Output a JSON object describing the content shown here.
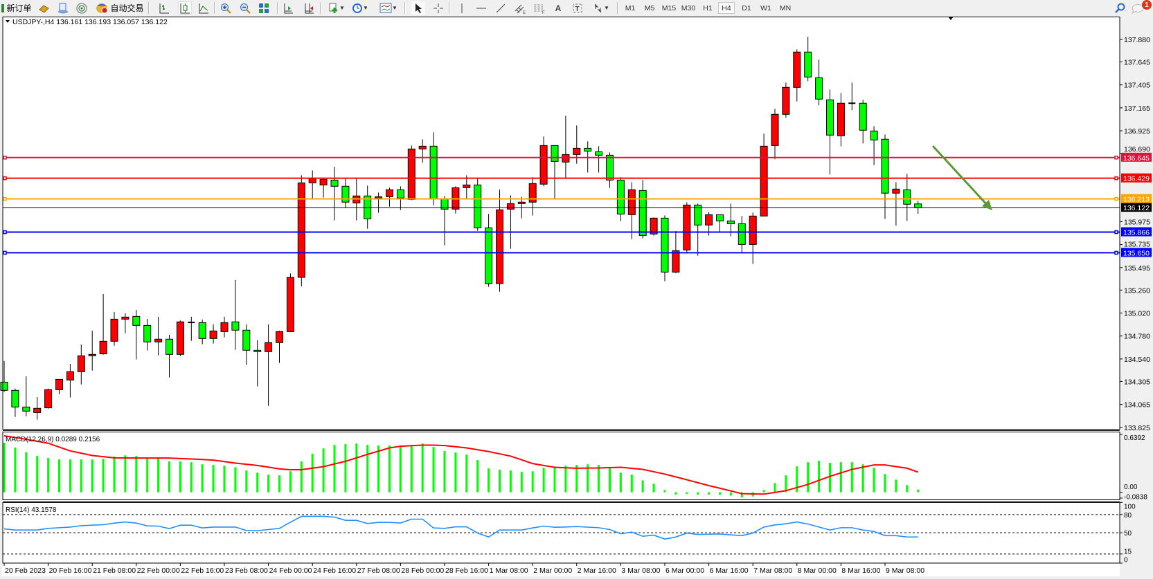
{
  "toolbar": {
    "new_order_label": "新订单",
    "auto_trade_label": "自动交易",
    "timeframes": [
      "M1",
      "M5",
      "M15",
      "M30",
      "H1",
      "H4",
      "D1",
      "W1",
      "MN"
    ],
    "active_timeframe": "H4",
    "notification_count": "1",
    "icons": [
      "new-order-icon",
      "gold-icon",
      "market-watch-icon",
      "signals-icon",
      "auto-trade-icon",
      "bar-chart-icon",
      "candlestick-icon",
      "line-chart-icon",
      "zoom-in-icon",
      "zoom-out-icon",
      "tile-windows-icon",
      "chart-shift-icon",
      "auto-scroll-icon",
      "new-chart-icon",
      "clock-icon",
      "template-icon",
      "cursor-icon",
      "crosshair-icon",
      "vertical-line-icon",
      "horizontal-line-icon",
      "trendline-icon",
      "equidistant-channel-icon",
      "fibonacci-icon",
      "text-icon",
      "text-label-icon",
      "arrows-icon",
      "search-icon",
      "chat-icon"
    ]
  },
  "chart": {
    "header": "USDJPY-,H4  136.161 136.193 136.057 136.122",
    "up_color": "#ff0000",
    "down_color": "#00ff00",
    "current_price": "136.122",
    "price_ticks": [
      "137.880",
      "137.645",
      "137.405",
      "137.165",
      "136.925",
      "136.690",
      "135.975",
      "135.735",
      "135.495",
      "135.260",
      "135.020",
      "134.780",
      "134.540",
      "134.305",
      "134.065",
      "133.825"
    ],
    "levels": [
      {
        "price": "136.645",
        "color": "#dc143c"
      },
      {
        "price": "136.429",
        "color": "#ff0000"
      },
      {
        "price": "136.213",
        "color": "#ffa500"
      },
      {
        "price": "135.866",
        "color": "#0000ff"
      },
      {
        "price": "135.650",
        "color": "#0000ff"
      }
    ],
    "arrow_color": "#5b9a32",
    "time_labels": [
      {
        "i": 0,
        "label": "20 Feb 2023"
      },
      {
        "i": 4,
        "label": "20 Feb 16:00"
      },
      {
        "i": 8,
        "label": "21 Feb 08:00"
      },
      {
        "i": 12,
        "label": "22 Feb 00:00"
      },
      {
        "i": 16,
        "label": "22 Feb 16:00"
      },
      {
        "i": 20,
        "label": "23 Feb 08:00"
      },
      {
        "i": 24,
        "label": "24 Feb 00:00"
      },
      {
        "i": 28,
        "label": "24 Feb 16:00"
      },
      {
        "i": 32,
        "label": "27 Feb 08:00"
      },
      {
        "i": 36,
        "label": "28 Feb 00:00"
      },
      {
        "i": 40,
        "label": "28 Feb 16:00"
      },
      {
        "i": 44,
        "label": "1 Mar 08:00"
      },
      {
        "i": 48,
        "label": "2 Mar 00:00"
      },
      {
        "i": 52,
        "label": "2 Mar 16:00"
      },
      {
        "i": 56,
        "label": "3 Mar 08:00"
      },
      {
        "i": 60,
        "label": "6 Mar 00:00"
      },
      {
        "i": 64,
        "label": "6 Mar 16:00"
      },
      {
        "i": 68,
        "label": "7 Mar 08:00"
      },
      {
        "i": 72,
        "label": "8 Mar 00:00"
      },
      {
        "i": 76,
        "label": "8 Mar 16:00"
      },
      {
        "i": 80,
        "label": "9 Mar 08:00"
      }
    ]
  },
  "macd": {
    "label": "MACD(12,26,9) 0.0289 0.2156",
    "axis_labels": [
      "0.6392",
      "0.00",
      "-0.0838"
    ],
    "hist_color": "#00ff00",
    "signal_color": "#ff0000"
  },
  "rsi": {
    "label": "RSI(14) 43.1578",
    "axis_labels": [
      "100",
      "80",
      "50",
      "15",
      "0"
    ],
    "levels": [
      80,
      50,
      15
    ],
    "line_color": "#1e90ff"
  },
  "chart_data": {
    "type": "candlestick",
    "symbol": "USDJPY-",
    "timeframe": "H4",
    "ylim": [
      133.825,
      137.95
    ],
    "ohlc": [
      [
        134.298,
        134.52,
        134.195,
        134.212
      ],
      [
        134.212,
        134.231,
        133.934,
        134.038
      ],
      [
        134.038,
        134.359,
        133.942,
        133.995
      ],
      [
        133.98,
        134.142,
        133.906,
        134.024
      ],
      [
        134.029,
        134.231,
        134.021,
        134.219
      ],
      [
        134.219,
        134.33,
        134.171,
        134.327
      ],
      [
        134.32,
        134.489,
        134.137,
        134.407
      ],
      [
        134.407,
        134.691,
        134.274,
        134.573
      ],
      [
        134.573,
        134.836,
        134.419,
        134.588
      ],
      [
        134.593,
        135.219,
        134.585,
        134.725
      ],
      [
        134.725,
        135.031,
        134.679,
        134.956
      ],
      [
        134.956,
        135.017,
        134.809,
        134.978
      ],
      [
        134.985,
        135.053,
        134.535,
        134.891
      ],
      [
        134.891,
        134.959,
        134.629,
        134.718
      ],
      [
        134.718,
        134.981,
        134.578,
        134.747
      ],
      [
        134.747,
        134.793,
        134.347,
        134.588
      ],
      [
        134.588,
        134.942,
        134.571,
        134.928
      ],
      [
        134.922,
        134.981,
        134.73,
        134.922
      ],
      [
        134.92,
        134.951,
        134.694,
        134.754
      ],
      [
        134.754,
        134.901,
        134.701,
        134.833
      ],
      [
        134.826,
        134.981,
        134.766,
        134.92
      ],
      [
        134.928,
        135.364,
        134.636,
        134.841
      ],
      [
        134.841,
        134.901,
        134.477,
        134.631
      ],
      [
        134.631,
        134.735,
        134.253,
        134.617
      ],
      [
        134.617,
        134.901,
        134.05,
        134.711
      ],
      [
        134.711,
        134.834,
        134.499,
        134.826
      ],
      [
        134.826,
        135.434,
        134.82,
        135.393
      ],
      [
        135.393,
        136.46,
        135.3,
        136.381
      ],
      [
        136.381,
        136.511,
        136.219,
        136.424
      ],
      [
        136.359,
        136.42,
        136.227,
        136.417
      ],
      [
        136.41,
        136.55,
        135.988,
        136.345
      ],
      [
        136.345,
        136.424,
        136.118,
        136.179
      ],
      [
        136.171,
        136.424,
        135.988,
        136.244
      ],
      [
        136.244,
        136.352,
        135.901,
        136.005
      ],
      [
        136.222,
        136.28,
        136.068,
        136.236
      ],
      [
        136.236,
        136.33,
        136.133,
        136.309
      ],
      [
        136.309,
        136.345,
        136.097,
        136.222
      ],
      [
        136.207,
        136.771,
        136.2,
        136.735
      ],
      [
        136.735,
        136.836,
        136.591,
        136.764
      ],
      [
        136.764,
        136.909,
        136.147,
        136.215
      ],
      [
        136.215,
        136.244,
        135.728,
        136.106
      ],
      [
        136.106,
        136.345,
        136.06,
        136.33
      ],
      [
        136.33,
        136.46,
        136.215,
        136.359
      ],
      [
        136.359,
        136.424,
        135.88,
        135.911
      ],
      [
        135.911,
        136.056,
        135.294,
        135.328
      ],
      [
        135.328,
        136.309,
        135.243,
        136.099
      ],
      [
        136.106,
        136.251,
        135.692,
        136.164
      ],
      [
        136.164,
        136.236,
        136.01,
        136.179
      ],
      [
        136.179,
        136.439,
        136.039,
        136.374
      ],
      [
        136.367,
        136.865,
        136.345,
        136.771
      ],
      [
        136.771,
        136.771,
        136.215,
        136.605
      ],
      [
        136.598,
        137.082,
        136.431,
        136.677
      ],
      [
        136.677,
        136.981,
        136.581,
        136.742
      ],
      [
        136.742,
        136.815,
        136.489,
        136.713
      ],
      [
        136.706,
        136.764,
        136.489,
        136.67
      ],
      [
        136.67,
        136.699,
        136.328,
        136.41
      ],
      [
        136.41,
        136.439,
        135.981,
        136.055
      ],
      [
        136.048,
        136.388,
        135.793,
        136.309
      ],
      [
        136.301,
        136.41,
        135.8,
        135.831
      ],
      [
        135.846,
        136.019,
        135.829,
        136.012
      ],
      [
        136.012,
        136.041,
        135.352,
        135.448
      ],
      [
        135.448,
        135.877,
        135.438,
        135.672
      ],
      [
        135.679,
        136.178,
        135.655,
        136.149
      ],
      [
        136.149,
        136.164,
        135.619,
        135.94
      ],
      [
        135.94,
        136.077,
        135.829,
        136.048
      ],
      [
        136.048,
        136.05,
        135.867,
        135.983
      ],
      [
        135.983,
        136.164,
        135.822,
        135.954
      ],
      [
        135.954,
        136.034,
        135.65,
        135.737
      ],
      [
        135.737,
        136.07,
        135.533,
        136.034
      ],
      [
        136.034,
        136.894,
        136.034,
        136.764
      ],
      [
        136.771,
        137.154,
        136.627,
        137.097
      ],
      [
        137.097,
        137.429,
        137.061,
        137.379
      ],
      [
        137.379,
        137.776,
        137.232,
        137.748
      ],
      [
        137.748,
        137.907,
        137.444,
        137.487
      ],
      [
        137.48,
        137.668,
        137.191,
        137.256
      ],
      [
        137.249,
        137.357,
        136.468,
        136.88
      ],
      [
        136.873,
        137.321,
        136.762,
        137.213
      ],
      [
        137.213,
        137.429,
        137.14,
        137.213
      ],
      [
        137.213,
        137.249,
        136.793,
        136.931
      ],
      [
        136.923,
        136.974,
        136.567,
        136.829
      ],
      [
        136.837,
        136.887,
        136.005,
        136.273
      ],
      [
        136.273,
        136.388,
        135.933,
        136.316
      ],
      [
        136.309,
        136.475,
        135.983,
        136.157
      ],
      [
        136.161,
        136.193,
        136.057,
        136.122
      ]
    ],
    "macd_hist": [
      0.528,
      0.476,
      0.427,
      0.387,
      0.365,
      0.35,
      0.35,
      0.35,
      0.35,
      0.357,
      0.38,
      0.394,
      0.387,
      0.365,
      0.365,
      0.328,
      0.328,
      0.32,
      0.298,
      0.291,
      0.283,
      0.266,
      0.232,
      0.209,
      0.187,
      0.18,
      0.224,
      0.328,
      0.412,
      0.468,
      0.505,
      0.513,
      0.52,
      0.505,
      0.498,
      0.498,
      0.498,
      0.505,
      0.52,
      0.483,
      0.439,
      0.424,
      0.402,
      0.343,
      0.254,
      0.239,
      0.232,
      0.217,
      0.224,
      0.261,
      0.261,
      0.283,
      0.291,
      0.298,
      0.291,
      0.261,
      0.209,
      0.187,
      0.128,
      0.091,
      0.024,
      -0.025,
      -0.018,
      -0.025,
      -0.025,
      -0.025,
      -0.035,
      -0.055,
      -0.045,
      0.024,
      0.098,
      0.18,
      0.276,
      0.32,
      0.335,
      0.313,
      0.32,
      0.32,
      0.298,
      0.261,
      0.194,
      0.135,
      0.076,
      0.0289
    ],
    "macd_signal": [
      0.602,
      0.584,
      0.565,
      0.544,
      0.523,
      0.482,
      0.441,
      0.417,
      0.392,
      0.38,
      0.367,
      0.366,
      0.365,
      0.365,
      0.365,
      0.365,
      0.36,
      0.355,
      0.349,
      0.343,
      0.327,
      0.311,
      0.299,
      0.286,
      0.268,
      0.249,
      0.241,
      0.241,
      0.257,
      0.273,
      0.302,
      0.33,
      0.367,
      0.404,
      0.439,
      0.473,
      0.491,
      0.497,
      0.503,
      0.503,
      0.498,
      0.486,
      0.473,
      0.454,
      0.434,
      0.41,
      0.385,
      0.346,
      0.306,
      0.286,
      0.266,
      0.261,
      0.256,
      0.258,
      0.259,
      0.263,
      0.266,
      0.255,
      0.244,
      0.219,
      0.194,
      0.164,
      0.133,
      0.102,
      0.071,
      0.043,
      0.014,
      -0.015,
      -0.018,
      -0.02,
      -0.002,
      0.017,
      0.05,
      0.083,
      0.127,
      0.17,
      0.207,
      0.244,
      0.268,
      0.291,
      0.291,
      0.274,
      0.256,
      0.2156
    ],
    "macd_ylim": [
      -0.0838,
      0.6392
    ],
    "rsi": [
      56.4,
      54.5,
      54.5,
      54.5,
      57.2,
      58.3,
      59.4,
      61.7,
      62.5,
      63.3,
      65.9,
      67.8,
      65.9,
      61.4,
      61.0,
      56.8,
      62.5,
      62.5,
      57.9,
      59.4,
      59.4,
      59.4,
      53.7,
      53.4,
      55.3,
      57.2,
      67.4,
      77.0,
      77.0,
      77.0,
      75.8,
      70.5,
      70.5,
      65.2,
      67.1,
      67.1,
      66.1,
      72.4,
      72.4,
      57.9,
      57.2,
      59.8,
      59.8,
      49.5,
      43.0,
      54.5,
      54.5,
      54.5,
      57.9,
      61.0,
      59.1,
      59.5,
      60.2,
      59.3,
      58.3,
      55.3,
      48.4,
      51.1,
      44.2,
      46.1,
      39.6,
      43.0,
      49.5,
      47.2,
      47.6,
      48.0,
      46.5,
      45.3,
      49.5,
      59.4,
      62.9,
      64.8,
      67.8,
      64.4,
      59.4,
      54.5,
      58.3,
      58.3,
      54.5,
      52.2,
      45.3,
      45.3,
      43.0,
      43.16
    ],
    "rsi_ylim": [
      0,
      100
    ]
  }
}
